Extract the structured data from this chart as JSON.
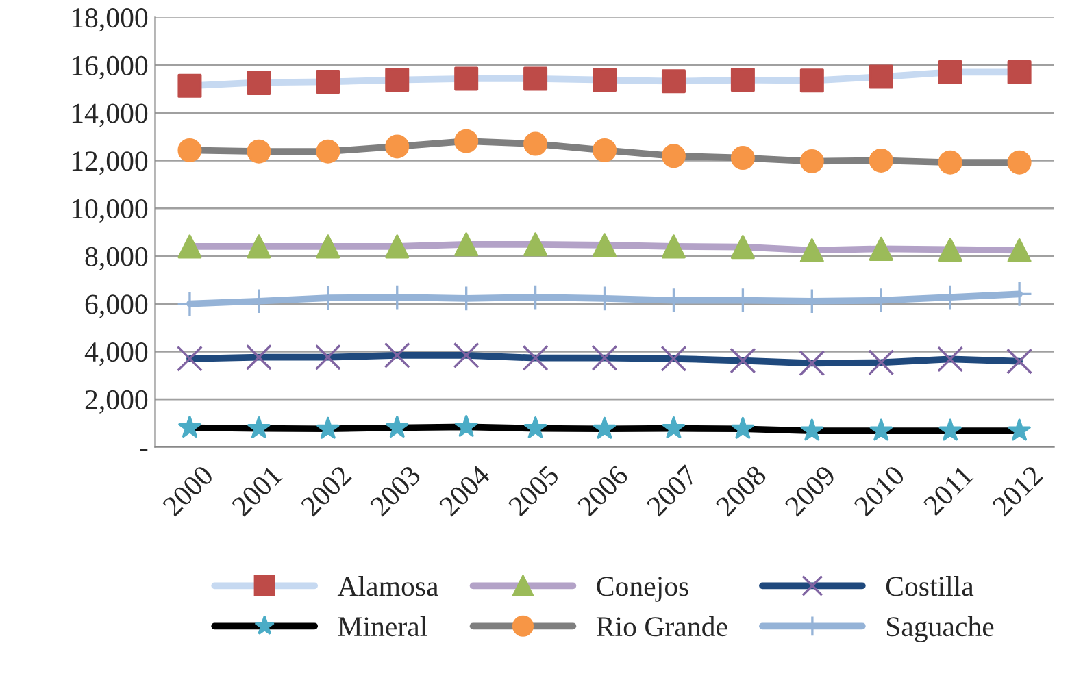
{
  "chart_data": {
    "type": "line",
    "categories": [
      "2000",
      "2001",
      "2002",
      "2003",
      "2004",
      "2005",
      "2006",
      "2007",
      "2008",
      "2009",
      "2010",
      "2011",
      "2012"
    ],
    "series": [
      {
        "name": "Alamosa",
        "color": "#c6d9f1",
        "marker": "square",
        "colors": [
          "#be4b48",
          "#be4b48",
          "#be4b48",
          "#be4b48",
          "#be4b48",
          "#be4b48",
          "#be4b48",
          "#be4b48",
          "#be4b48",
          "#be4b48",
          "#be4b48",
          "#be4b48",
          "#be4b48"
        ],
        "values": [
          15130,
          15270,
          15300,
          15380,
          15430,
          15430,
          15380,
          15320,
          15380,
          15350,
          15510,
          15700,
          15700
        ]
      },
      {
        "name": "Conejos",
        "color": "#b3a2c7",
        "marker": "triangle",
        "colors": [
          "#9bbb59",
          "#9bbb59",
          "#9bbb59",
          "#9bbb59",
          "#9bbb59",
          "#9bbb59",
          "#9bbb59",
          "#9bbb59",
          "#9bbb59",
          "#9bbb59",
          "#9bbb59",
          "#9bbb59",
          "#9bbb59"
        ],
        "values": [
          8400,
          8400,
          8400,
          8400,
          8490,
          8490,
          8460,
          8400,
          8380,
          8240,
          8300,
          8270,
          8240
        ]
      },
      {
        "name": "Costilla",
        "color": "#1f497d",
        "marker": "cross",
        "colors": [
          "#8064a2",
          "#8064a2",
          "#8064a2",
          "#8064a2",
          "#8064a2",
          "#8064a2",
          "#8064a2",
          "#8064a2",
          "#8064a2",
          "#8064a2",
          "#8064a2",
          "#8064a2",
          "#8064a2"
        ],
        "values": [
          3700,
          3760,
          3760,
          3840,
          3840,
          3730,
          3730,
          3700,
          3620,
          3510,
          3540,
          3680,
          3590
        ]
      },
      {
        "name": "Mineral",
        "color": "#000000",
        "marker": "star",
        "colors": [
          "#4bacc6",
          "#4bacc6",
          "#4bacc6",
          "#4bacc6",
          "#4bacc6",
          "#4bacc6",
          "#4bacc6",
          "#4bacc6",
          "#4bacc6",
          "#4bacc6",
          "#4bacc6",
          "#4bacc6",
          "#4bacc6"
        ],
        "values": [
          810,
          780,
          760,
          810,
          840,
          780,
          760,
          780,
          760,
          680,
          680,
          680,
          680
        ]
      },
      {
        "name": "Rio Grande",
        "color": "#7f7f7f",
        "marker": "circle",
        "colors": [
          "#f79646",
          "#f79646",
          "#f79646",
          "#f79646",
          "#f79646",
          "#f79646",
          "#f79646",
          "#f79646",
          "#f79646",
          "#f79646",
          "#f79646",
          "#f79646",
          "#f79646"
        ],
        "values": [
          12430,
          12380,
          12380,
          12590,
          12810,
          12700,
          12430,
          12190,
          12110,
          11970,
          12000,
          11920,
          11920
        ]
      },
      {
        "name": "Saguache",
        "color": "#95b3d7",
        "marker": "plus",
        "colors": [
          "#95b3d7",
          "#95b3d7",
          "#95b3d7",
          "#95b3d7",
          "#95b3d7",
          "#95b3d7",
          "#95b3d7",
          "#95b3d7",
          "#95b3d7",
          "#95b3d7",
          "#95b3d7",
          "#95b3d7",
          "#95b3d7"
        ],
        "values": [
          6000,
          6110,
          6240,
          6270,
          6220,
          6270,
          6220,
          6140,
          6140,
          6110,
          6140,
          6270,
          6410
        ]
      }
    ],
    "ylim": [
      0,
      18000
    ],
    "yticks": [
      {
        "value": 0,
        "label": "-"
      },
      {
        "value": 2000,
        "label": "2,000"
      },
      {
        "value": 4000,
        "label": "4,000"
      },
      {
        "value": 6000,
        "label": "6,000"
      },
      {
        "value": 8000,
        "label": "8,000"
      },
      {
        "value": 10000,
        "label": "10,000"
      },
      {
        "value": 12000,
        "label": "12,000"
      },
      {
        "value": 14000,
        "label": "14,000"
      },
      {
        "value": 16000,
        "label": "16,000"
      },
      {
        "value": 18000,
        "label": "18,000"
      }
    ],
    "grid": "y",
    "legend": "bottom"
  }
}
